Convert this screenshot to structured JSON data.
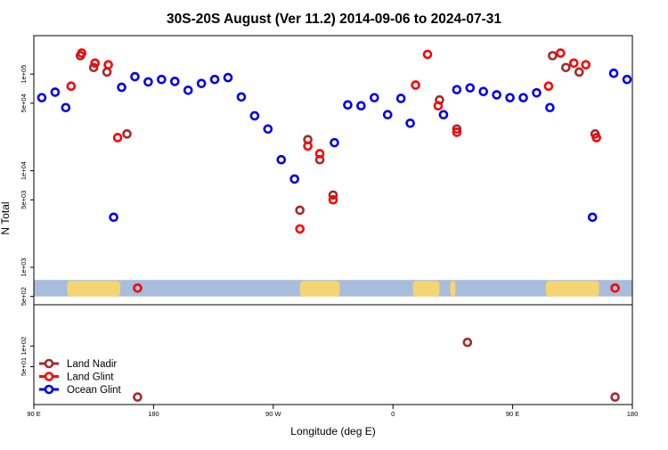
{
  "chart_data": {
    "type": "scatter",
    "title": "30S-20S August (Ver 11.2)   2014-09-06 to 2024-07-31",
    "xlabel": "Longitude (deg E)",
    "ylabel": "N Total",
    "x_ticks": [
      {
        "x": 0,
        "label": "90 E"
      },
      {
        "x": 90,
        "label": "180"
      },
      {
        "x": 180,
        "label": "90 W"
      },
      {
        "x": 270,
        "label": "0"
      },
      {
        "x": 360,
        "label": "90 E"
      },
      {
        "x": 450,
        "label": "180"
      }
    ],
    "xlim": [
      0,
      450
    ],
    "upper_panel": {
      "scale": "log",
      "ylim": [
        410,
        250000
      ],
      "y_ticks": [
        {
          "y": 500,
          "label": "5e+02"
        },
        {
          "y": 1000,
          "label": "1e+03"
        },
        {
          "y": 5000,
          "label": "5e+03"
        },
        {
          "y": 10000,
          "label": "1e+04"
        },
        {
          "y": 50000,
          "label": "5e+04"
        },
        {
          "y": 100000,
          "label": "1e+05"
        }
      ]
    },
    "lower_panel": {
      "scale": "log",
      "ylim": [
        14,
        400
      ],
      "y_ticks": [
        {
          "y": 50,
          "label": "5e+01"
        },
        {
          "y": 100,
          "label": "1e+02"
        }
      ]
    },
    "land_mask_band": {
      "y_range": [
        500,
        740
      ],
      "ocean_color": "#a8bcdc",
      "land_color": "#f5d472"
    },
    "land_segments": [
      [
        25,
        65
      ],
      [
        200,
        230
      ],
      [
        285,
        305
      ],
      [
        313,
        317
      ],
      [
        385,
        425
      ]
    ],
    "series": [
      {
        "name": "Land Nadir",
        "color": "#a52a2a",
        "panel_upper": [
          {
            "x": 35,
            "y": 155000
          },
          {
            "x": 45,
            "y": 117000
          },
          {
            "x": 55,
            "y": 105000
          },
          {
            "x": 70,
            "y": 24000
          },
          {
            "x": 200,
            "y": 3900
          },
          {
            "x": 206,
            "y": 21000
          },
          {
            "x": 215,
            "y": 13000
          },
          {
            "x": 225,
            "y": 5600
          },
          {
            "x": 305,
            "y": 54000
          },
          {
            "x": 318,
            "y": 27000
          },
          {
            "x": 390,
            "y": 155000
          },
          {
            "x": 400,
            "y": 117000
          },
          {
            "x": 410,
            "y": 105000
          },
          {
            "x": 422,
            "y": 24000
          }
        ],
        "panel_lower": [
          {
            "x": 78,
            "y": 18
          },
          {
            "x": 326,
            "y": 113
          },
          {
            "x": 437,
            "y": 18
          }
        ]
      },
      {
        "name": "Land Glint",
        "color": "#ff0000",
        "panel_upper": [
          {
            "x": 28,
            "y": 75000
          },
          {
            "x": 36,
            "y": 165000
          },
          {
            "x": 46,
            "y": 130000
          },
          {
            "x": 56,
            "y": 125000
          },
          {
            "x": 63,
            "y": 22000
          },
          {
            "x": 78,
            "y": 610
          },
          {
            "x": 200,
            "y": 2500
          },
          {
            "x": 206,
            "y": 18000
          },
          {
            "x": 215,
            "y": 15000
          },
          {
            "x": 225,
            "y": 5000
          },
          {
            "x": 287,
            "y": 77000
          },
          {
            "x": 296,
            "y": 160000
          },
          {
            "x": 304,
            "y": 47000
          },
          {
            "x": 318,
            "y": 25000
          },
          {
            "x": 387,
            "y": 75000
          },
          {
            "x": 396,
            "y": 165000
          },
          {
            "x": 406,
            "y": 130000
          },
          {
            "x": 415,
            "y": 125000
          },
          {
            "x": 423,
            "y": 22000
          },
          {
            "x": 437,
            "y": 610
          }
        ],
        "panel_lower": []
      },
      {
        "name": "Ocean Glint",
        "color": "#0000ee",
        "panel_upper": [
          {
            "x": 6,
            "y": 57000
          },
          {
            "x": 16,
            "y": 65000
          },
          {
            "x": 24,
            "y": 45000
          },
          {
            "x": 60,
            "y": 3300
          },
          {
            "x": 66,
            "y": 73000
          },
          {
            "x": 76,
            "y": 94000
          },
          {
            "x": 86,
            "y": 83000
          },
          {
            "x": 96,
            "y": 88000
          },
          {
            "x": 106,
            "y": 84000
          },
          {
            "x": 116,
            "y": 68000
          },
          {
            "x": 126,
            "y": 80000
          },
          {
            "x": 136,
            "y": 88000
          },
          {
            "x": 146,
            "y": 92000
          },
          {
            "x": 156,
            "y": 58000
          },
          {
            "x": 166,
            "y": 37000
          },
          {
            "x": 176,
            "y": 27000
          },
          {
            "x": 186,
            "y": 13000
          },
          {
            "x": 196,
            "y": 8200
          },
          {
            "x": 226,
            "y": 19500
          },
          {
            "x": 236,
            "y": 48000
          },
          {
            "x": 246,
            "y": 47000
          },
          {
            "x": 256,
            "y": 57000
          },
          {
            "x": 266,
            "y": 38000
          },
          {
            "x": 276,
            "y": 56000
          },
          {
            "x": 283,
            "y": 31000
          },
          {
            "x": 308,
            "y": 38000
          },
          {
            "x": 318,
            "y": 69000
          },
          {
            "x": 328,
            "y": 72000
          },
          {
            "x": 338,
            "y": 66000
          },
          {
            "x": 348,
            "y": 61000
          },
          {
            "x": 358,
            "y": 57000
          },
          {
            "x": 368,
            "y": 57000
          },
          {
            "x": 378,
            "y": 64000
          },
          {
            "x": 388,
            "y": 45000
          },
          {
            "x": 420,
            "y": 3300
          },
          {
            "x": 436,
            "y": 102000
          },
          {
            "x": 446,
            "y": 88000
          }
        ],
        "panel_lower": []
      }
    ]
  }
}
